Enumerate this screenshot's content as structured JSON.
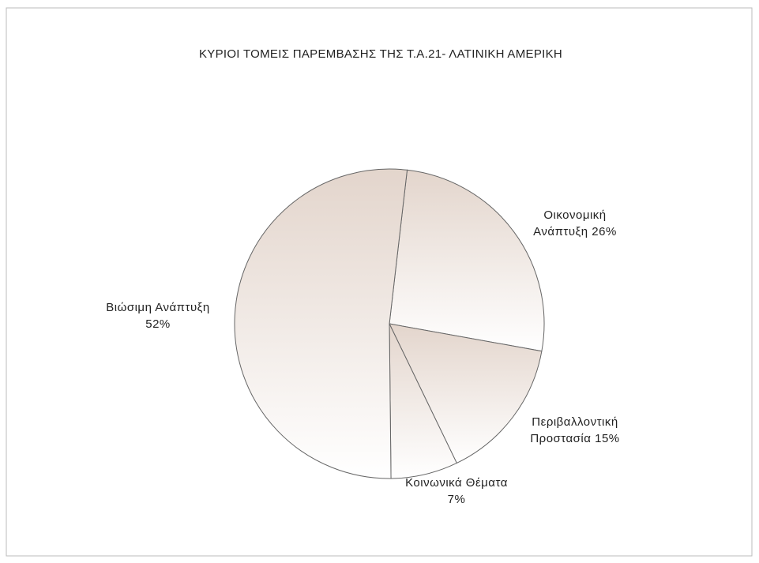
{
  "chart_data": {
    "type": "pie",
    "title": "ΚΥΡΙΟΙ ΤΟΜΕΙΣ ΠΑΡΕΜΒΑΣΗΣ ΤΗΣ Τ.Α.21- ΛΑΤΙΝΙΚΗ ΑΜΕΡΙΚΗ",
    "categories": [
      "Οικονομική Ανάπτυξη",
      "Περιβαλλοντική Προστασία",
      "Κοινωνικά Θέματα",
      "Βιώσιμη Ανάπτυξη"
    ],
    "values": [
      26,
      15,
      7,
      52
    ],
    "value_labels": [
      "26%",
      "15%",
      "7%",
      "52%"
    ],
    "color": "#e3d5cc"
  }
}
